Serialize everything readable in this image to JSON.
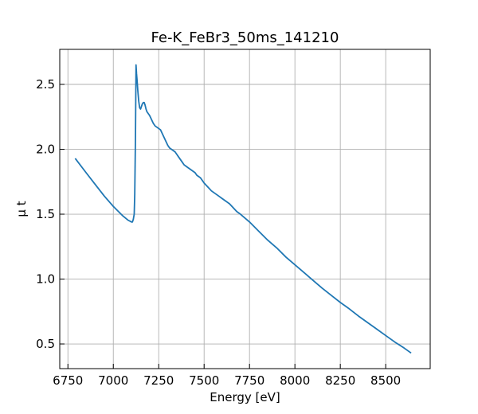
{
  "chart_data": {
    "type": "line",
    "title": "Fe-K_FeBr3_50ms_141210",
    "xlabel": "Energy [eV]",
    "ylabel": "μ t",
    "xlim": [
      6705,
      8745
    ],
    "ylim": [
      0.31,
      2.77
    ],
    "xticks": [
      6750,
      7000,
      7250,
      7500,
      7750,
      8000,
      8250,
      8500
    ],
    "yticks": [
      0.5,
      1.0,
      1.5,
      2.0,
      2.5
    ],
    "xtick_labels": [
      "6750",
      "7000",
      "7250",
      "7500",
      "7750",
      "8000",
      "8250",
      "8500"
    ],
    "ytick_labels": [
      "0.5",
      "1.0",
      "1.5",
      "2.0",
      "2.5"
    ],
    "grid": true,
    "line_color": "#1f77b4",
    "series": [
      {
        "x": [
          6790,
          6850,
          6900,
          6950,
          7000,
          7050,
          7080,
          7100,
          7105,
          7110,
          7115,
          7118,
          7122,
          7125,
          7128,
          7131,
          7135,
          7140,
          7145,
          7150,
          7155,
          7160,
          7165,
          7170,
          7175,
          7180,
          7185,
          7190,
          7195,
          7200,
          7210,
          7220,
          7230,
          7240,
          7250,
          7260,
          7270,
          7280,
          7290,
          7300,
          7310,
          7320,
          7330,
          7340,
          7350,
          7360,
          7370,
          7380,
          7390,
          7400,
          7410,
          7420,
          7430,
          7440,
          7450,
          7460,
          7470,
          7480,
          7490,
          7500,
          7520,
          7540,
          7560,
          7580,
          7600,
          7620,
          7640,
          7660,
          7680,
          7700,
          7750,
          7800,
          7850,
          7900,
          7950,
          8000,
          8050,
          8100,
          8150,
          8200,
          8250,
          8300,
          8350,
          8400,
          8450,
          8500,
          8550,
          8600,
          8640
        ],
        "y": [
          1.93,
          1.82,
          1.73,
          1.64,
          1.56,
          1.49,
          1.455,
          1.44,
          1.44,
          1.46,
          1.5,
          1.65,
          2.1,
          2.65,
          2.58,
          2.53,
          2.45,
          2.37,
          2.32,
          2.31,
          2.33,
          2.35,
          2.36,
          2.36,
          2.34,
          2.31,
          2.29,
          2.28,
          2.27,
          2.26,
          2.23,
          2.2,
          2.18,
          2.17,
          2.16,
          2.15,
          2.12,
          2.09,
          2.06,
          2.03,
          2.01,
          2.0,
          1.99,
          1.98,
          1.96,
          1.94,
          1.92,
          1.9,
          1.88,
          1.87,
          1.86,
          1.85,
          1.84,
          1.83,
          1.82,
          1.8,
          1.79,
          1.78,
          1.76,
          1.74,
          1.71,
          1.68,
          1.66,
          1.64,
          1.62,
          1.6,
          1.58,
          1.55,
          1.52,
          1.5,
          1.44,
          1.37,
          1.3,
          1.24,
          1.17,
          1.11,
          1.05,
          0.99,
          0.93,
          0.875,
          0.82,
          0.77,
          0.715,
          0.665,
          0.615,
          0.565,
          0.515,
          0.47,
          0.43
        ]
      }
    ]
  }
}
